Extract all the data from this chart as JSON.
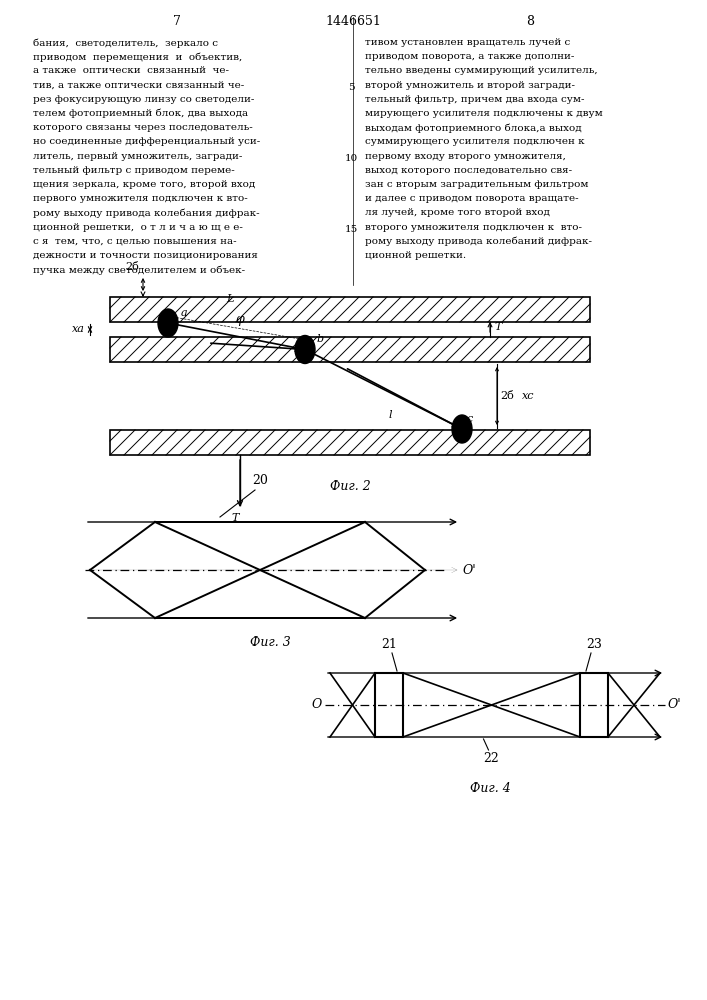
{
  "page_num_left": "7",
  "page_num_center": "1446651",
  "page_num_right": "8",
  "text_left": "бания,  светоделитель,  зеркало с\nприводом  перемещения  и  объектив,\nа также  оптически  связанный  че-\nтив, а также оптически связанный че-\nрез фокусирующую линзу со светодели-\nтелем фотоприемный блок, два выхода\nкоторого связаны через последователь-\nно соединенные дифференциальный уси-\nлитель, первый умножитель, загради-\nтельный фильтр с приводом переме-\nщения зеркала, кроме того, второй вход\nпервого умножителя подключен к вто-\nрому выходу привода колебания дифрак-\nционной решетки,  о т л и ч а ю щ е е-\nс я  тем, что, с целью повышения на-\nдежности и точности позиционирования\nпучка между светоделителем и объек-",
  "text_right": "тивом установлен вращатель лучей с\nприводом поворота, а также дополни-\nтельно введены суммирующий усилитель,\nвторой умножитель и второй загради-\nтельный фильтр, причем два входа сум-\nмирующего усилителя подключены к двум\nвыходам фотоприемного блока,а выход\nсуммирующего усилителя подключен к\nпервому входу второго умножителя,\nвыход которого последовательно свя-\nзан с вторым заградительным фильтром\nи далее с приводом поворота вращате-\nля лучей, кроме того второй вход\nвторого умножителя подключен к  вто-\nрому выходу привода колебаний дифрак-\nционной решетки.",
  "fig2_label": "Фиг. 2",
  "fig3_label": "Фиг. 3",
  "fig4_label": "Фиг. 4",
  "bg_color": "#ffffff",
  "font_size_text": 7.5,
  "font_size_fig": 9,
  "font_size_header": 9,
  "gutter_nums": [
    [
      3,
      "5"
    ],
    [
      8,
      "10"
    ],
    [
      13,
      "15"
    ]
  ]
}
